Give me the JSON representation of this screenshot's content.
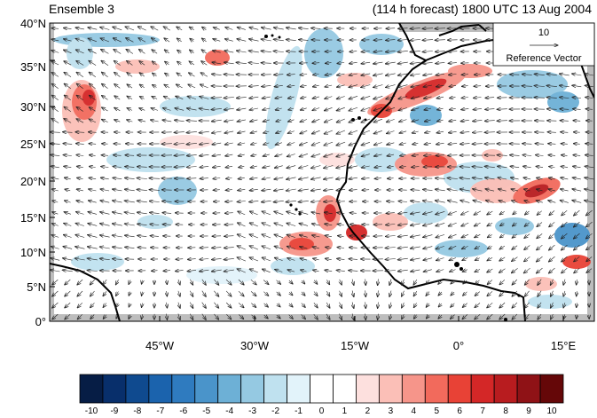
{
  "header": {
    "left_title": "Ensemble 3",
    "right_title": "(114 h forecast) 1800 UTC 13 Aug 2004"
  },
  "map": {
    "lat_ticks": [
      "40°N",
      "35°N",
      "30°N",
      "25°N",
      "20°N",
      "15°N",
      "10°N",
      "5°N",
      "0°"
    ],
    "lon_ticks": [
      "45°W",
      "30°W",
      "15°W",
      "0°",
      "15°E"
    ],
    "reference_vector": {
      "value": "10",
      "label": "Reference Vector"
    }
  },
  "colorbar": {
    "labels": [
      "-10",
      "-9",
      "-8",
      "-7",
      "-6",
      "-5",
      "-4",
      "-3",
      "-2",
      "-1",
      "0",
      "1",
      "2",
      "3",
      "4",
      "5",
      "6",
      "7",
      "8",
      "9",
      "10"
    ],
    "colors": [
      "#061d45",
      "#082f6b",
      "#0f4a8f",
      "#1b63ad",
      "#2f7bbf",
      "#4a94ca",
      "#6db0d6",
      "#95c9e2",
      "#bfe1ef",
      "#e2f3fa",
      "#ffffff",
      "#ffffff",
      "#fde0de",
      "#fbbfb7",
      "#f6958a",
      "#f26a5c",
      "#e84236",
      "#d42727",
      "#b81c1f",
      "#8f1216",
      "#650708"
    ]
  }
}
